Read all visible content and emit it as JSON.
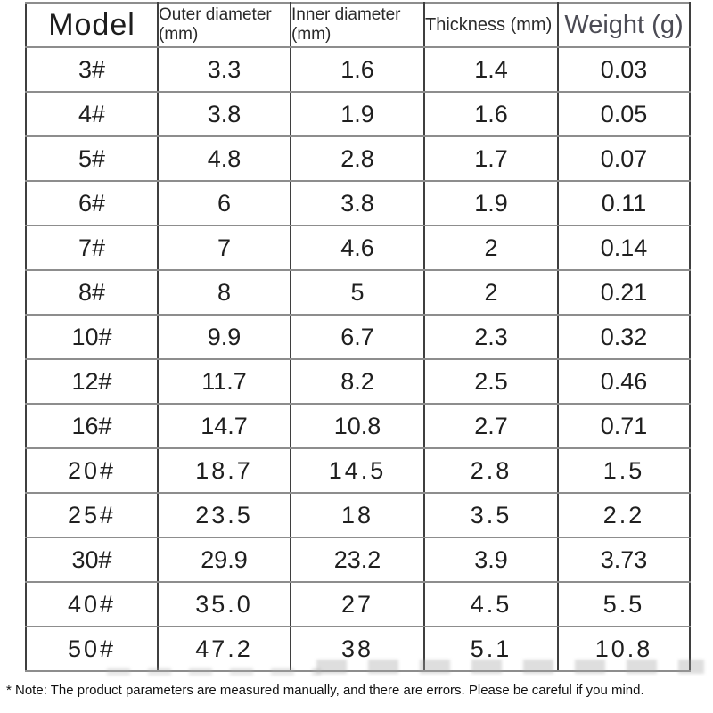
{
  "table": {
    "columns": [
      {
        "label": "Model",
        "unit": ""
      },
      {
        "label": "Outer diameter",
        "unit": "(mm)"
      },
      {
        "label": "Inner diameter",
        "unit": "(mm)"
      },
      {
        "label": "Thickness (mm)",
        "unit": ""
      },
      {
        "label": "Weight (g)",
        "unit": ""
      }
    ],
    "rows": [
      {
        "model": "3#",
        "outer": "3.3",
        "inner": "1.6",
        "thickness": "1.4",
        "weight": "0.03"
      },
      {
        "model": "4#",
        "outer": "3.8",
        "inner": "1.9",
        "thickness": "1.6",
        "weight": "0.05"
      },
      {
        "model": "5#",
        "outer": "4.8",
        "inner": "2.8",
        "thickness": "1.7",
        "weight": "0.07"
      },
      {
        "model": "6#",
        "outer": "6",
        "inner": "3.8",
        "thickness": "1.9",
        "weight": "0.11"
      },
      {
        "model": "7#",
        "outer": "7",
        "inner": "4.6",
        "thickness": "2",
        "weight": "0.14"
      },
      {
        "model": "8#",
        "outer": "8",
        "inner": "5",
        "thickness": "2",
        "weight": "0.21"
      },
      {
        "model": "10#",
        "outer": "9.9",
        "inner": "6.7",
        "thickness": "2.3",
        "weight": "0.32"
      },
      {
        "model": "12#",
        "outer": "11.7",
        "inner": "8.2",
        "thickness": "2.5",
        "weight": "0.46"
      },
      {
        "model": "16#",
        "outer": "14.7",
        "inner": "10.8",
        "thickness": "2.7",
        "weight": "0.71"
      },
      {
        "model": "20#",
        "outer": "18.7",
        "inner": "14.5",
        "thickness": "2.8",
        "weight": "1.5"
      },
      {
        "model": "25#",
        "outer": "23.5",
        "inner": "18",
        "thickness": "3.5",
        "weight": "2.2"
      },
      {
        "model": "30#",
        "outer": "29.9",
        "inner": "23.2",
        "thickness": "3.9",
        "weight": "3.73"
      },
      {
        "model": "40#",
        "outer": "35.0",
        "inner": "27",
        "thickness": "4.5",
        "weight": "5.5"
      },
      {
        "model": "50#",
        "outer": "47.2",
        "inner": "38",
        "thickness": "5.1",
        "weight": "10.8"
      }
    ]
  },
  "note": "* Note: The product parameters are measured manually, and there are errors. Please be careful if you mind."
}
